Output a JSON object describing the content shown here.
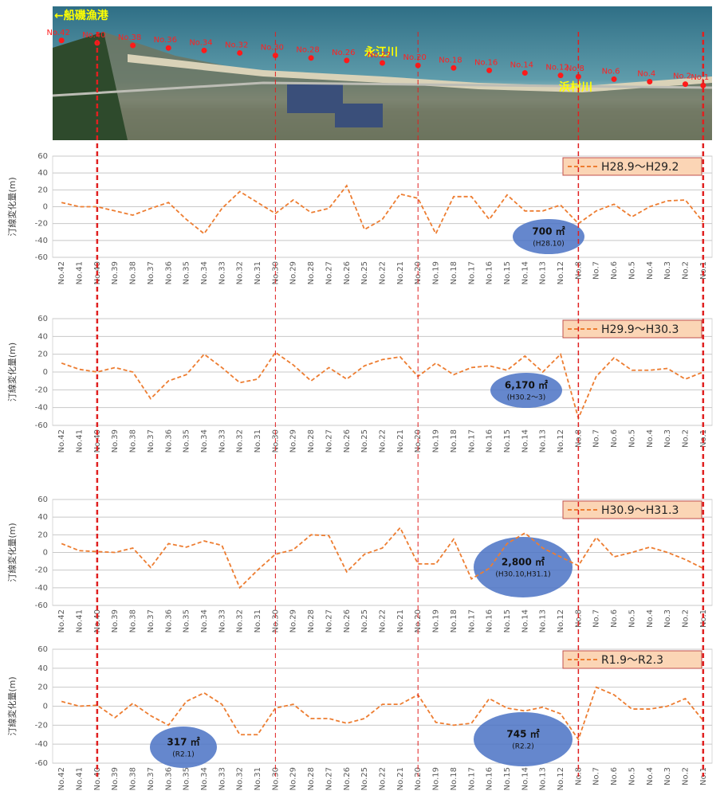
{
  "photo": {
    "places": [
      "←船磯漁港",
      "永江川",
      "浜村川"
    ],
    "stations": [
      "No.42",
      "No.40",
      "No.38",
      "No.36",
      "No.34",
      "No.32",
      "No.30",
      "No.28",
      "No.26",
      "No.22",
      "No.20",
      "No.18",
      "No.16",
      "No.14",
      "No.12",
      "No.8",
      "No.6",
      "No.4",
      "No.2",
      "No.1"
    ]
  },
  "chart_data": [
    {
      "type": "line",
      "y_label": "汀線変化量(m)",
      "categories": [
        "No.42",
        "No.41",
        "No.40",
        "No.39",
        "No.38",
        "No.37",
        "No.36",
        "No.35",
        "No.34",
        "No.33",
        "No.32",
        "No.31",
        "No.30",
        "No.29",
        "No.28",
        "No.27",
        "No.26",
        "No.25",
        "No.22",
        "No.21",
        "No.20",
        "No.19",
        "No.18",
        "No.17",
        "No.16",
        "No.15",
        "No.14",
        "No.13",
        "No.12",
        "No.8",
        "No.7",
        "No.6",
        "No.5",
        "No.4",
        "No.3",
        "No.2",
        "No.1"
      ],
      "series": [
        {
          "name": "H28.9～H29.2",
          "color": "#ed7d31",
          "values": [
            5,
            0,
            0,
            -5,
            -10,
            -2,
            5,
            -15,
            -32,
            -2,
            18,
            5,
            -8,
            8,
            -7,
            -2,
            25,
            -27,
            -15,
            15,
            10,
            -32,
            12,
            12,
            -15,
            14,
            -5,
            -5,
            2,
            -20,
            -5,
            3,
            -12,
            0,
            7,
            8,
            -18
          ]
        }
      ],
      "ylim": [
        -60,
        60
      ],
      "yticks": [
        -60,
        -40,
        -20,
        0,
        20,
        40,
        60
      ],
      "grid": true,
      "legend": "top-right",
      "annotations": [
        {
          "text": "700 ㎡",
          "subtext": "(H28.10)"
        }
      ]
    },
    {
      "type": "line",
      "y_label": "汀線変化量(m)",
      "categories": [
        "No.42",
        "No.41",
        "No.40",
        "No.39",
        "No.38",
        "No.37",
        "No.36",
        "No.35",
        "No.34",
        "No.33",
        "No.32",
        "No.31",
        "No.30",
        "No.29",
        "No.28",
        "No.27",
        "No.26",
        "No.25",
        "No.22",
        "No.21",
        "No.20",
        "No.19",
        "No.18",
        "No.17",
        "No.16",
        "No.15",
        "No.14",
        "No.13",
        "No.12",
        "No.8",
        "No.7",
        "No.6",
        "No.5",
        "No.4",
        "No.3",
        "No.2",
        "No.1"
      ],
      "series": [
        {
          "name": "H29.9～H30.3",
          "color": "#ed7d31",
          "values": [
            10,
            3,
            0,
            5,
            0,
            -30,
            -10,
            -3,
            20,
            5,
            -12,
            -8,
            22,
            8,
            -10,
            5,
            -8,
            7,
            14,
            17,
            -5,
            10,
            -3,
            5,
            7,
            2,
            18,
            0,
            20,
            -52,
            -5,
            16,
            2,
            2,
            4,
            -8,
            0
          ]
        }
      ],
      "ylim": [
        -60,
        60
      ],
      "yticks": [
        -60,
        -40,
        -20,
        0,
        20,
        40,
        60
      ],
      "grid": true,
      "legend": "top-right",
      "annotations": [
        {
          "text": "6,170 ㎡",
          "subtext": "(H30.2～3)"
        }
      ]
    },
    {
      "type": "line",
      "y_label": "汀線変化量(m)",
      "categories": [
        "No.42",
        "No.41",
        "No.40",
        "No.39",
        "No.38",
        "No.37",
        "No.36",
        "No.35",
        "No.34",
        "No.33",
        "No.32",
        "No.31",
        "No.30",
        "No.29",
        "No.28",
        "No.27",
        "No.26",
        "No.25",
        "No.22",
        "No.21",
        "No.20",
        "No.19",
        "No.18",
        "No.17",
        "No.16",
        "No.15",
        "No.14",
        "No.13",
        "No.12",
        "No.8",
        "No.7",
        "No.6",
        "No.5",
        "No.4",
        "No.3",
        "No.2",
        "No.1"
      ],
      "series": [
        {
          "name": "H30.9～H31.3",
          "color": "#ed7d31",
          "values": [
            10,
            2,
            1,
            0,
            5,
            -17,
            10,
            6,
            13,
            8,
            -40,
            -20,
            -2,
            3,
            20,
            19,
            -22,
            -2,
            5,
            28,
            -13,
            -13,
            15,
            -30,
            -18,
            10,
            22,
            5,
            -5,
            -15,
            17,
            -5,
            0,
            6,
            0,
            -8,
            -18
          ]
        }
      ],
      "ylim": [
        -60,
        60
      ],
      "yticks": [
        -60,
        -40,
        -20,
        0,
        20,
        40,
        60
      ],
      "grid": true,
      "legend": "top-right",
      "annotations": [
        {
          "text": "2,800 ㎡",
          "subtext": "(H30.10,H31.1)"
        }
      ]
    },
    {
      "type": "line",
      "y_label": "汀線変化量(m)",
      "categories": [
        "No.42",
        "No.41",
        "No.40",
        "No.39",
        "No.38",
        "No.37",
        "No.36",
        "No.35",
        "No.34",
        "No.33",
        "No.32",
        "No.31",
        "No.30",
        "No.29",
        "No.28",
        "No.27",
        "No.26",
        "No.25",
        "No.22",
        "No.21",
        "No.20",
        "No.19",
        "No.18",
        "No.17",
        "No.16",
        "No.15",
        "No.14",
        "No.13",
        "No.12",
        "No.8",
        "No.7",
        "No.6",
        "No.5",
        "No.4",
        "No.3",
        "No.2",
        "No.1"
      ],
      "series": [
        {
          "name": "R1.9～R2.3",
          "color": "#ed7d31",
          "values": [
            5,
            0,
            1,
            -12,
            3,
            -10,
            -20,
            5,
            14,
            2,
            -30,
            -30,
            -2,
            2,
            -13,
            -13,
            -18,
            -13,
            2,
            2,
            12,
            -17,
            -20,
            -18,
            8,
            -2,
            -5,
            -1,
            -8,
            -35,
            20,
            12,
            -3,
            -3,
            0,
            8,
            -15
          ]
        }
      ],
      "ylim": [
        -60,
        60
      ],
      "yticks": [
        -60,
        -40,
        -20,
        0,
        20,
        40,
        60
      ],
      "grid": true,
      "legend": "top-right",
      "annotations": [
        {
          "text": "317 ㎡",
          "subtext": "(R2.1)"
        },
        {
          "text": "745 ㎡",
          "subtext": "(R2.2)"
        }
      ]
    }
  ]
}
